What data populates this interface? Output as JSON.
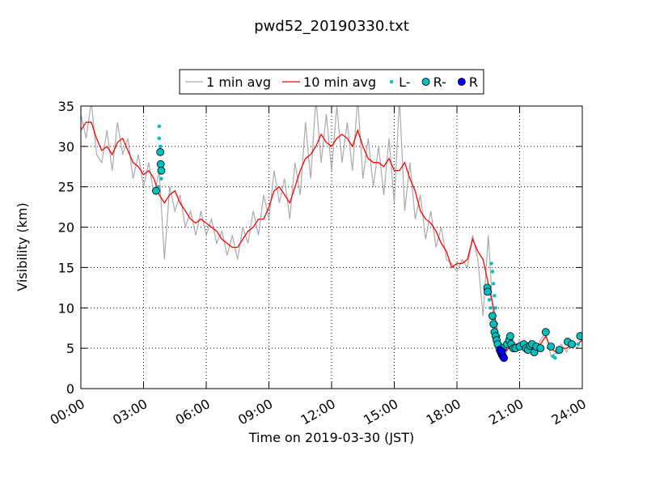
{
  "chart_data": {
    "type": "line",
    "title": "pwd52_20190330.txt",
    "xlabel": "Time on 2019-03-30 (JST)",
    "ylabel": "Visibility (km)",
    "xlim": [
      0,
      24
    ],
    "ylim": [
      0,
      35
    ],
    "xticks": [
      {
        "value": 0,
        "label": "00:00"
      },
      {
        "value": 3,
        "label": "03:00"
      },
      {
        "value": 6,
        "label": "06:00"
      },
      {
        "value": 9,
        "label": "09:00"
      },
      {
        "value": 12,
        "label": "12:00"
      },
      {
        "value": 15,
        "label": "15:00"
      },
      {
        "value": 18,
        "label": "18:00"
      },
      {
        "value": 21,
        "label": "21:00"
      },
      {
        "value": 24,
        "label": "24:00"
      }
    ],
    "yticks": [
      0,
      5,
      10,
      15,
      20,
      25,
      30,
      35
    ],
    "grid": true,
    "legend": "top",
    "x": [
      0,
      0.25,
      0.5,
      0.75,
      1,
      1.25,
      1.5,
      1.75,
      2,
      2.25,
      2.5,
      2.75,
      3,
      3.25,
      3.5,
      3.75,
      4,
      4.25,
      4.5,
      4.75,
      5,
      5.25,
      5.5,
      5.75,
      6,
      6.25,
      6.5,
      6.75,
      7,
      7.25,
      7.5,
      7.75,
      8,
      8.25,
      8.5,
      8.75,
      9,
      9.25,
      9.5,
      9.75,
      10,
      10.25,
      10.5,
      10.75,
      11,
      11.25,
      11.5,
      11.75,
      12,
      12.25,
      12.5,
      12.75,
      13,
      13.25,
      13.5,
      13.75,
      14,
      14.25,
      14.5,
      14.75,
      15,
      15.25,
      15.5,
      15.75,
      16,
      16.25,
      16.5,
      16.75,
      17,
      17.25,
      17.5,
      17.75,
      18,
      18.25,
      18.5,
      18.75,
      19,
      19.25,
      19.5,
      19.75,
      20,
      20.25,
      20.5,
      20.75,
      21,
      21.25,
      21.5,
      21.75,
      22,
      22.25,
      22.5,
      22.75,
      23,
      23.25,
      23.5,
      23.75,
      24
    ],
    "series": [
      {
        "name": "1 min avg",
        "kind": "line",
        "color": "#aaaaaa",
        "values": [
          34,
          31,
          35.5,
          29,
          28,
          32,
          27,
          33,
          29,
          31,
          26,
          29,
          25,
          28,
          24,
          27,
          16,
          25,
          22,
          24,
          20,
          22,
          19,
          22,
          19,
          21,
          18,
          19.5,
          16.5,
          19,
          16,
          20,
          18,
          22,
          19,
          24,
          21,
          27,
          23,
          26,
          21,
          28,
          24,
          33,
          26,
          36,
          28,
          34,
          27,
          35,
          28,
          33,
          27,
          36,
          26,
          31,
          25,
          30,
          24,
          31,
          23,
          36,
          22,
          28,
          21,
          24,
          18.5,
          22,
          17.5,
          20,
          16,
          15.5,
          14.5,
          16,
          15,
          19,
          16,
          9,
          19,
          8,
          5,
          3.5,
          5.5,
          5,
          6,
          4.5,
          6,
          4.5,
          6,
          7,
          4,
          4.5,
          5.5,
          4.5,
          6,
          5,
          6.5
        ]
      },
      {
        "name": "10 min avg",
        "kind": "line",
        "color": "#ff0000",
        "values": [
          32,
          33,
          33,
          31,
          29.5,
          30,
          29,
          30.5,
          31,
          29.5,
          28,
          27.5,
          26.5,
          27,
          26,
          24,
          23,
          24,
          24.5,
          23,
          22,
          21,
          20.5,
          21,
          20.5,
          20,
          19.5,
          18.5,
          18,
          17.5,
          17.5,
          18.5,
          19.5,
          20,
          21,
          21,
          22.5,
          24.5,
          25,
          24,
          23,
          25,
          27,
          28.5,
          29,
          30,
          31.5,
          30.5,
          30,
          31,
          31.5,
          31,
          30,
          32,
          30,
          28.5,
          28,
          28,
          27.5,
          28.5,
          27,
          27,
          28,
          26,
          24.5,
          22,
          21,
          20.5,
          19.5,
          18,
          17,
          15,
          15.5,
          15.5,
          16,
          18.5,
          17,
          16,
          13,
          10,
          6,
          4.5,
          5,
          5.5,
          5.5,
          5,
          5.5,
          5,
          5.5,
          6.5,
          5,
          4.5,
          5,
          5,
          5.5,
          5.5,
          6
        ]
      },
      {
        "name": "L-",
        "kind": "dot",
        "color": "#00bfbf",
        "x": [
          3.75,
          3.75,
          3.8,
          3.8,
          3.85,
          3.7,
          19.5,
          19.55,
          19.6,
          19.65,
          19.7,
          19.75,
          19.8,
          19.85,
          19.9,
          20.0,
          20.1,
          22.6,
          22.7,
          22.8,
          23.0,
          23.4,
          23.8,
          21.5,
          21.7
        ],
        "values": [
          31,
          32.5,
          30,
          28,
          26,
          25,
          12,
          11,
          10,
          15.5,
          14.5,
          13,
          11.5,
          10,
          8,
          6.5,
          5.5,
          4,
          3.8,
          4.5,
          5,
          5.5,
          5.5,
          5,
          4.5
        ]
      },
      {
        "name": "R-",
        "kind": "circle",
        "color": "#00bfbf",
        "x": [
          3.6,
          3.8,
          3.82,
          3.85,
          19.45,
          19.47,
          19.7,
          19.75,
          19.8,
          19.85,
          19.9,
          19.95,
          20.2,
          20.4,
          20.5,
          20.55,
          20.6,
          20.7,
          20.8,
          21.0,
          21.2,
          21.3,
          21.4,
          21.5,
          21.6,
          21.7,
          21.8,
          22.0,
          22.25,
          22.5,
          22.9,
          23.3,
          23.5,
          23.9
        ],
        "values": [
          24.5,
          29.3,
          27.8,
          27,
          12.5,
          12,
          9,
          8,
          7,
          6.5,
          6,
          5.5,
          5,
          5.5,
          6,
          6.5,
          5.5,
          5,
          5,
          5.2,
          5.5,
          5,
          4.8,
          5.3,
          5.5,
          4.5,
          5.2,
          5,
          7,
          5.2,
          4.8,
          5.8,
          5.5,
          6.5
        ]
      },
      {
        "name": "R",
        "kind": "circle",
        "color": "#0000ff",
        "x": [
          20.05,
          20.1,
          20.15,
          20.2,
          20.25,
          20.15
        ],
        "values": [
          4.8,
          4.5,
          4.2,
          4,
          3.8,
          4.6
        ]
      }
    ]
  }
}
